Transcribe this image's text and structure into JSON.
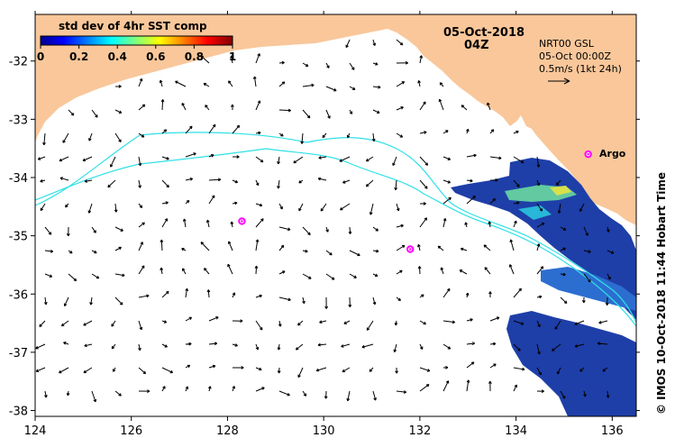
{
  "map": {
    "date": "05-Oct-2018",
    "time": "04Z",
    "product": "NRT00 GSL",
    "analysis_time": "05-Oct 00:00Z",
    "scale_text": "0.5m/s (1kt 24h)",
    "credit": "© IMOS 10-Oct-2018 11:44 Hobart Time",
    "argo_label": "Argo",
    "colors": {
      "land": "#f9c79a",
      "contour": "#2fe0e6",
      "argo": "#ff00ff",
      "sea": "#ffffff"
    }
  },
  "colorbar": {
    "title": "std dev of 4hr SST comp",
    "ticks": [
      "0",
      "0.2",
      "0.4",
      "0.6",
      "0.8",
      "1"
    ]
  },
  "axes": {
    "x_ticks": [
      "124",
      "126",
      "128",
      "130",
      "132",
      "134",
      "136"
    ],
    "y_ticks": [
      "-32",
      "-33",
      "-34",
      "-35",
      "-36",
      "-37",
      "-38"
    ],
    "lon_range": [
      124,
      136.5
    ],
    "lat_range": [
      -38.1,
      -31.2
    ]
  },
  "argo_floats": [
    {
      "lon": 128.3,
      "lat": -34.75
    },
    {
      "lon": 131.8,
      "lat": -35.23
    },
    {
      "lon": 135.5,
      "lat": -33.6
    }
  ]
}
